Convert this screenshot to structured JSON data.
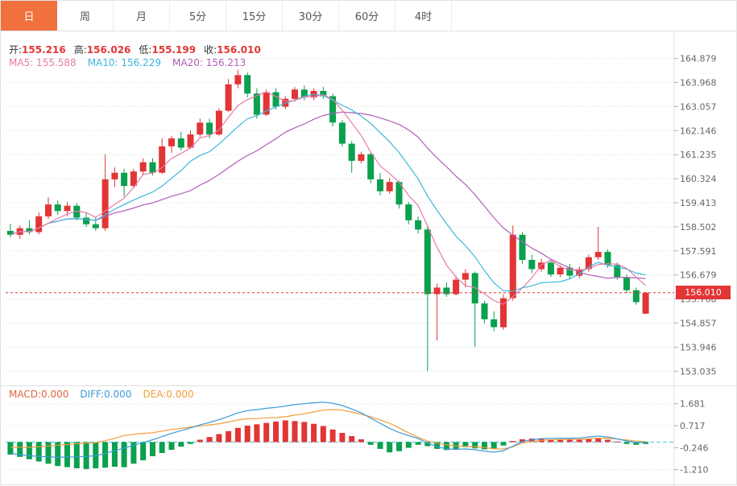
{
  "tabs": {
    "items": [
      {
        "id": "day",
        "label": "日",
        "active": true
      },
      {
        "id": "week",
        "label": "周",
        "active": false
      },
      {
        "id": "month",
        "label": "月",
        "active": false
      },
      {
        "id": "5min",
        "label": "5分",
        "active": false
      },
      {
        "id": "15min",
        "label": "15分",
        "active": false
      },
      {
        "id": "30min",
        "label": "30分",
        "active": false
      },
      {
        "id": "60min",
        "label": "60分",
        "active": false
      },
      {
        "id": "4hour",
        "label": "4时",
        "active": false
      }
    ]
  },
  "main_chart": {
    "ohlc_legend": [
      {
        "label": "开:",
        "value": "155.216"
      },
      {
        "label": "高:",
        "value": "156.026"
      },
      {
        "label": "低:",
        "value": "155.199"
      },
      {
        "label": "收:",
        "value": "156.010"
      }
    ],
    "ma_legend": [
      {
        "text": "MA5: 155.588",
        "color": "#e87ba8"
      },
      {
        "text": "MA10: 156.229",
        "color": "#3bb8dc"
      },
      {
        "text": "MA20: 156.213",
        "color": "#b05fb5"
      }
    ],
    "current_price_label": "156.010",
    "y_tick_labels": [
      "164.879",
      "163.968",
      "163.057",
      "162.146",
      "161.235",
      "160.324",
      "159.413",
      "158.502",
      "157.591",
      "156.679",
      "155.768",
      "154.857",
      "153.946",
      "153.035"
    ]
  },
  "macd_panel": {
    "legend": [
      {
        "text": "MACD:0.000",
        "color": "#e0643f"
      },
      {
        "text": "DIFF:0.000",
        "color": "#3a9ad9"
      },
      {
        "text": "DEA:0.000",
        "color": "#f39c3d"
      }
    ],
    "y_tick_labels": [
      "1.681",
      "0.717",
      "-0.246",
      "-1.210"
    ]
  },
  "colors": {
    "up": "#e23535",
    "down": "#0aa04e",
    "price_line": "#e23535",
    "zero_line": "#45c5d8",
    "diff_line": "#3a9ad9",
    "dea_line": "#f39c3d",
    "tab_active_bg": "#f0703e",
    "axis_text": "#666666",
    "legend_value": "#e23535",
    "grid": "#e9e9e9"
  },
  "chart_data": [
    {
      "type": "candlestick",
      "title": "",
      "y_ticks": [
        164.879,
        163.968,
        163.057,
        162.146,
        161.235,
        160.324,
        159.413,
        158.502,
        157.591,
        156.679,
        155.768,
        154.857,
        153.946,
        153.035
      ],
      "y_range": [
        152.8,
        165.6
      ],
      "current_price": 156.01,
      "overlays": [
        {
          "name": "MA5",
          "period": 5,
          "color": "#e87ba8"
        },
        {
          "name": "MA10",
          "period": 10,
          "color": "#3bb8dc"
        },
        {
          "name": "MA20",
          "period": 20,
          "color": "#b05fb5"
        }
      ],
      "ohlc": [
        [
          158.35,
          158.62,
          158.1,
          158.2
        ],
        [
          158.2,
          158.55,
          158.05,
          158.45
        ],
        [
          158.45,
          158.75,
          158.2,
          158.3
        ],
        [
          158.3,
          159.05,
          158.22,
          158.9
        ],
        [
          158.9,
          159.62,
          158.8,
          159.35
        ],
        [
          159.35,
          159.5,
          158.95,
          159.1
        ],
        [
          159.1,
          159.45,
          158.9,
          159.3
        ],
        [
          159.3,
          159.4,
          158.75,
          158.85
        ],
        [
          158.85,
          159.05,
          158.5,
          158.6
        ],
        [
          158.6,
          158.85,
          158.35,
          158.45
        ],
        [
          158.45,
          161.25,
          158.35,
          160.3
        ],
        [
          160.3,
          160.75,
          160.0,
          160.55
        ],
        [
          160.55,
          160.7,
          159.65,
          160.05
        ],
        [
          160.05,
          160.7,
          159.95,
          160.6
        ],
        [
          160.6,
          161.1,
          160.45,
          160.95
        ],
        [
          160.95,
          161.1,
          160.45,
          160.55
        ],
        [
          160.55,
          161.85,
          160.5,
          161.55
        ],
        [
          161.55,
          161.95,
          161.3,
          161.85
        ],
        [
          161.85,
          162.1,
          161.4,
          161.5
        ],
        [
          161.5,
          162.15,
          161.45,
          162.0
        ],
        [
          162.0,
          162.6,
          161.9,
          162.45
        ],
        [
          162.45,
          162.6,
          161.85,
          162.0
        ],
        [
          162.0,
          163.0,
          161.95,
          162.9
        ],
        [
          162.9,
          164.1,
          162.85,
          163.9
        ],
        [
          163.9,
          164.45,
          163.75,
          164.25
        ],
        [
          164.25,
          164.35,
          163.4,
          163.55
        ],
        [
          163.55,
          163.75,
          162.6,
          162.75
        ],
        [
          162.75,
          163.7,
          162.7,
          163.6
        ],
        [
          163.6,
          163.75,
          162.95,
          163.05
        ],
        [
          163.05,
          163.45,
          162.95,
          163.35
        ],
        [
          163.35,
          163.8,
          163.25,
          163.7
        ],
        [
          163.7,
          163.85,
          163.3,
          163.4
        ],
        [
          163.4,
          163.75,
          163.3,
          163.65
        ],
        [
          163.65,
          163.8,
          163.35,
          163.45
        ],
        [
          163.45,
          163.55,
          162.3,
          162.45
        ],
        [
          162.45,
          162.55,
          161.55,
          161.65
        ],
        [
          161.65,
          161.75,
          160.55,
          161.0
        ],
        [
          161.0,
          161.35,
          160.9,
          161.25
        ],
        [
          161.25,
          161.3,
          160.15,
          160.3
        ],
        [
          160.3,
          160.55,
          159.7,
          159.85
        ],
        [
          159.85,
          160.35,
          159.75,
          160.2
        ],
        [
          160.2,
          160.25,
          159.2,
          159.35
        ],
        [
          159.35,
          159.45,
          158.6,
          158.75
        ],
        [
          158.75,
          158.9,
          158.25,
          158.4
        ],
        [
          158.4,
          158.55,
          153.04,
          155.95
        ],
        [
          155.95,
          156.35,
          154.2,
          156.2
        ],
        [
          156.2,
          156.4,
          155.85,
          155.95
        ],
        [
          155.95,
          156.65,
          155.9,
          156.5
        ],
        [
          156.5,
          156.9,
          156.2,
          156.75
        ],
        [
          156.75,
          156.8,
          153.95,
          155.6
        ],
        [
          155.6,
          155.7,
          154.85,
          155.0
        ],
        [
          155.0,
          155.3,
          154.55,
          154.7
        ],
        [
          154.7,
          155.95,
          154.6,
          155.8
        ],
        [
          155.8,
          158.55,
          155.7,
          158.2
        ],
        [
          158.2,
          158.3,
          157.1,
          157.25
        ],
        [
          157.25,
          157.45,
          156.75,
          156.9
        ],
        [
          156.9,
          157.3,
          156.8,
          157.15
        ],
        [
          157.15,
          157.25,
          156.6,
          156.7
        ],
        [
          156.7,
          157.05,
          156.6,
          156.95
        ],
        [
          156.95,
          157.1,
          156.55,
          156.65
        ],
        [
          156.65,
          157.0,
          156.55,
          156.9
        ],
        [
          156.9,
          157.45,
          156.8,
          157.35
        ],
        [
          157.35,
          158.5,
          157.25,
          157.55
        ],
        [
          157.55,
          157.65,
          156.95,
          157.05
        ],
        [
          157.05,
          157.15,
          156.5,
          156.6
        ],
        [
          156.6,
          156.7,
          156.0,
          156.1
        ],
        [
          156.1,
          156.2,
          155.55,
          155.65
        ],
        [
          155.216,
          156.026,
          155.199,
          156.01
        ]
      ]
    },
    {
      "type": "bar",
      "name": "MACD",
      "y_ticks": [
        1.681,
        0.717,
        -0.246,
        -1.21
      ],
      "y_range": [
        -1.75,
        2.2
      ],
      "histogram": [
        -0.55,
        -0.65,
        -0.75,
        -0.85,
        -0.95,
        -1.05,
        -1.1,
        -1.15,
        -1.18,
        -1.15,
        -1.12,
        -1.08,
        -1.1,
        -0.95,
        -0.8,
        -0.62,
        -0.48,
        -0.34,
        -0.2,
        -0.08,
        0.1,
        0.22,
        0.35,
        0.48,
        0.62,
        0.72,
        0.78,
        0.84,
        0.9,
        0.95,
        0.92,
        0.88,
        0.8,
        0.7,
        0.55,
        0.4,
        0.26,
        0.12,
        -0.12,
        -0.3,
        -0.45,
        -0.4,
        -0.25,
        -0.12,
        -0.18,
        -0.3,
        -0.35,
        -0.3,
        -0.22,
        -0.28,
        -0.32,
        -0.28,
        -0.15,
        0.05,
        0.12,
        0.15,
        0.15,
        0.12,
        0.12,
        0.1,
        0.12,
        0.15,
        0.18,
        0.1,
        0.02,
        -0.08,
        -0.12,
        -0.08
      ],
      "diff": [
        -0.5,
        -0.55,
        -0.6,
        -0.63,
        -0.65,
        -0.66,
        -0.66,
        -0.65,
        -0.63,
        -0.6,
        -0.5,
        -0.38,
        -0.26,
        -0.14,
        -0.02,
        0.1,
        0.24,
        0.38,
        0.5,
        0.62,
        0.75,
        0.86,
        0.98,
        1.12,
        1.28,
        1.38,
        1.42,
        1.48,
        1.52,
        1.58,
        1.64,
        1.68,
        1.72,
        1.75,
        1.7,
        1.6,
        1.45,
        1.28,
        1.05,
        0.82,
        0.6,
        0.42,
        0.28,
        0.15,
        -0.05,
        -0.2,
        -0.3,
        -0.32,
        -0.3,
        -0.34,
        -0.4,
        -0.44,
        -0.38,
        -0.18,
        0.02,
        0.1,
        0.15,
        0.16,
        0.17,
        0.17,
        0.18,
        0.22,
        0.26,
        0.22,
        0.14,
        0.05,
        -0.02,
        -0.02
      ],
      "dea": [
        -0.225,
        -0.225,
        -0.225,
        -0.205,
        -0.175,
        -0.135,
        -0.11,
        -0.075,
        -0.04,
        -0.025,
        0.06,
        0.16,
        0.29,
        0.335,
        0.38,
        0.41,
        0.48,
        0.55,
        0.6,
        0.66,
        0.7,
        0.75,
        0.805,
        0.88,
        0.97,
        1.02,
        1.03,
        1.06,
        1.07,
        1.105,
        1.18,
        1.24,
        1.32,
        1.4,
        1.425,
        1.4,
        1.32,
        1.22,
        1.11,
        0.97,
        0.825,
        0.62,
        0.405,
        0.21,
        0.04,
        -0.05,
        -0.125,
        -0.17,
        -0.19,
        -0.2,
        -0.24,
        -0.3,
        -0.305,
        -0.205,
        -0.04,
        0.025,
        0.075,
        0.1,
        0.11,
        0.12,
        0.12,
        0.145,
        0.17,
        0.17,
        0.13,
        0.09,
        0.04,
        0.02
      ]
    }
  ]
}
